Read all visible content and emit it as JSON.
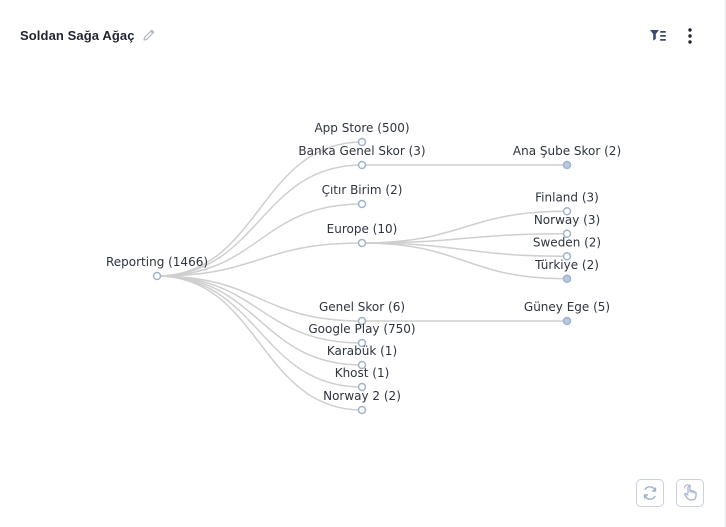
{
  "widget": {
    "title": "Soldan Sağa Ağaç",
    "accent_color": "#3a4a6b"
  },
  "icons": {
    "edit": "pencil-icon",
    "filter": "filter-list-icon",
    "more": "more-vertical-icon",
    "refresh": "refresh-icon",
    "pan": "hand-pointer-icon"
  },
  "tree": {
    "link_color": "#cfcfcf",
    "collapsed_fill": "#b8c8de",
    "expanded_fill": "#ffffff",
    "node_stroke": "#9fb3cf",
    "root": {
      "label": "Reporting (1466)",
      "children": [
        {
          "label": "App Store (500)",
          "children": []
        },
        {
          "label": "Banka Genel Skor (3)",
          "children": [
            {
              "label": "Ana Şube Skor (2)",
              "collapsed": true
            }
          ]
        },
        {
          "label": "Çıtır Birim (2)",
          "children": []
        },
        {
          "label": "Europe (10)",
          "children": [
            {
              "label": "Finland (3)"
            },
            {
              "label": "Norway (3)"
            },
            {
              "label": "Sweden (2)"
            },
            {
              "label": "Türkiye (2)",
              "collapsed": true
            }
          ]
        },
        {
          "label": "Genel Skor (6)",
          "children": [
            {
              "label": "Güney Ege (5)",
              "collapsed": true
            }
          ]
        },
        {
          "label": "Google Play (750)",
          "children": []
        },
        {
          "label": "Karabük (1)",
          "children": []
        },
        {
          "label": "Khost (1)",
          "children": []
        },
        {
          "label": "Norway 2 (2)",
          "children": []
        }
      ]
    }
  }
}
